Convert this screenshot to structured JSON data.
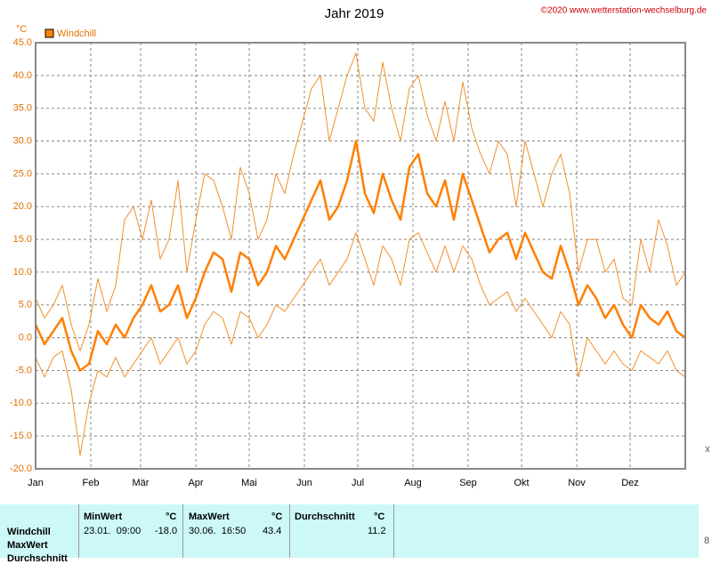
{
  "chart_data": {
    "type": "line",
    "title": "Jahr 2019",
    "source": "©2020 www.wetterstation-wechselburg.de",
    "y_label": "°C",
    "legend_label": "Windchill",
    "x": [
      0,
      5,
      10,
      15,
      20,
      25,
      30,
      35,
      40,
      45,
      50,
      55,
      60,
      65,
      70,
      75,
      80,
      85,
      90,
      95,
      100,
      105,
      110,
      115,
      120,
      125,
      130,
      135,
      140,
      145,
      150,
      155,
      160,
      165,
      170,
      175,
      180,
      185,
      190,
      195,
      200,
      205,
      210,
      215,
      220,
      225,
      230,
      235,
      240,
      245,
      250,
      255,
      260,
      265,
      270,
      275,
      280,
      285,
      290,
      295,
      300,
      305,
      310,
      315,
      320,
      325,
      330,
      335,
      340,
      345,
      350,
      355,
      360,
      365
    ],
    "series": [
      {
        "color": "#f0902a",
        "width": 1,
        "values": [
          6,
          3,
          5,
          8,
          2,
          -2,
          2,
          9,
          4,
          8,
          18,
          20,
          15,
          21,
          12,
          15,
          24,
          10,
          18,
          25,
          24,
          20,
          15,
          26,
          22,
          15,
          18,
          25,
          22,
          28,
          33,
          38,
          40,
          30,
          35,
          40,
          43.4,
          35,
          33,
          42,
          35,
          30,
          38,
          40,
          34,
          30,
          36,
          30,
          39,
          32,
          28,
          25,
          30,
          28,
          20,
          30,
          25,
          20,
          25,
          28,
          22,
          10,
          15,
          15,
          10,
          12,
          6,
          5,
          15,
          10,
          18,
          14,
          8,
          10
        ]
      },
      {
        "name": "Windchill",
        "color": "#ff8000",
        "width": 2.5,
        "values": [
          2,
          -1,
          1,
          3,
          -2,
          -5,
          -4,
          1,
          -1,
          2,
          0,
          3,
          5,
          8,
          4,
          5,
          8,
          3,
          6,
          10,
          13,
          12,
          7,
          13,
          12,
          8,
          10,
          14,
          12,
          15,
          18,
          21,
          24,
          18,
          20,
          24,
          30,
          22,
          19,
          25,
          21,
          18,
          26,
          28,
          22,
          20,
          24,
          18,
          25,
          21,
          17,
          13,
          15,
          16,
          12,
          16,
          13,
          10,
          9,
          14,
          10,
          5,
          8,
          6,
          3,
          5,
          2,
          0,
          5,
          3,
          2,
          4,
          1,
          0
        ]
      },
      {
        "color": "#f0902a",
        "width": 1,
        "values": [
          -3,
          -6,
          -3,
          -2,
          -8,
          -18,
          -10,
          -5,
          -6,
          -3,
          -6,
          -4,
          -2,
          0,
          -4,
          -2,
          0,
          -4,
          -2,
          2,
          4,
          3,
          -1,
          4,
          3,
          0,
          2,
          5,
          4,
          6,
          8,
          10,
          12,
          8,
          10,
          12,
          16,
          12,
          8,
          14,
          12,
          8,
          15,
          16,
          13,
          10,
          14,
          10,
          14,
          12,
          8,
          5,
          6,
          7,
          4,
          6,
          4,
          2,
          0,
          4,
          2,
          -6,
          0,
          -2,
          -4,
          -2,
          -4,
          -5,
          -2,
          -3,
          -4,
          -2,
          -5,
          -6
        ]
      }
    ],
    "xlim": [
      0,
      365
    ],
    "xticks": [
      {
        "value": 0,
        "label": "Jan"
      },
      {
        "value": 31,
        "label": "Feb"
      },
      {
        "value": 59,
        "label": "Mär"
      },
      {
        "value": 90,
        "label": "Apr"
      },
      {
        "value": 120,
        "label": "Mai"
      },
      {
        "value": 151,
        "label": "Jun"
      },
      {
        "value": 181,
        "label": "Jul"
      },
      {
        "value": 212,
        "label": "Aug"
      },
      {
        "value": 243,
        "label": "Sep"
      },
      {
        "value": 273,
        "label": "Okt"
      },
      {
        "value": 304,
        "label": "Nov"
      },
      {
        "value": 334,
        "label": "Dez"
      }
    ],
    "ylim": [
      -20,
      45
    ],
    "yticks": [
      {
        "value": -20,
        "label": "-20.0"
      },
      {
        "value": -15,
        "label": "-15.0"
      },
      {
        "value": -10,
        "label": "-10.0"
      },
      {
        "value": -5,
        "label": "-5.0"
      },
      {
        "value": 0,
        "label": "0.0"
      },
      {
        "value": 5,
        "label": "5.0"
      },
      {
        "value": 10,
        "label": "10.0"
      },
      {
        "value": 15,
        "label": "15.0"
      },
      {
        "value": 20,
        "label": "20.0"
      },
      {
        "value": 25,
        "label": "25.0"
      },
      {
        "value": 30,
        "label": "30.0"
      },
      {
        "value": 35,
        "label": "35.0"
      },
      {
        "value": 40,
        "label": "40.0"
      },
      {
        "value": 45,
        "label": "45.0"
      }
    ],
    "grid": true
  },
  "table": {
    "header": [
      "MinWert",
      "°C",
      "MaxWert",
      "°C",
      "Durchschnitt",
      "°C"
    ],
    "row_labels": [
      "Windchill",
      "MaxWert",
      "Durchschnitt"
    ],
    "row": [
      "23.01.  09:00",
      "-18.0",
      "30.06.  16:50",
      "43.4",
      "11.2"
    ]
  },
  "edge_marks": [
    "x",
    "8"
  ]
}
